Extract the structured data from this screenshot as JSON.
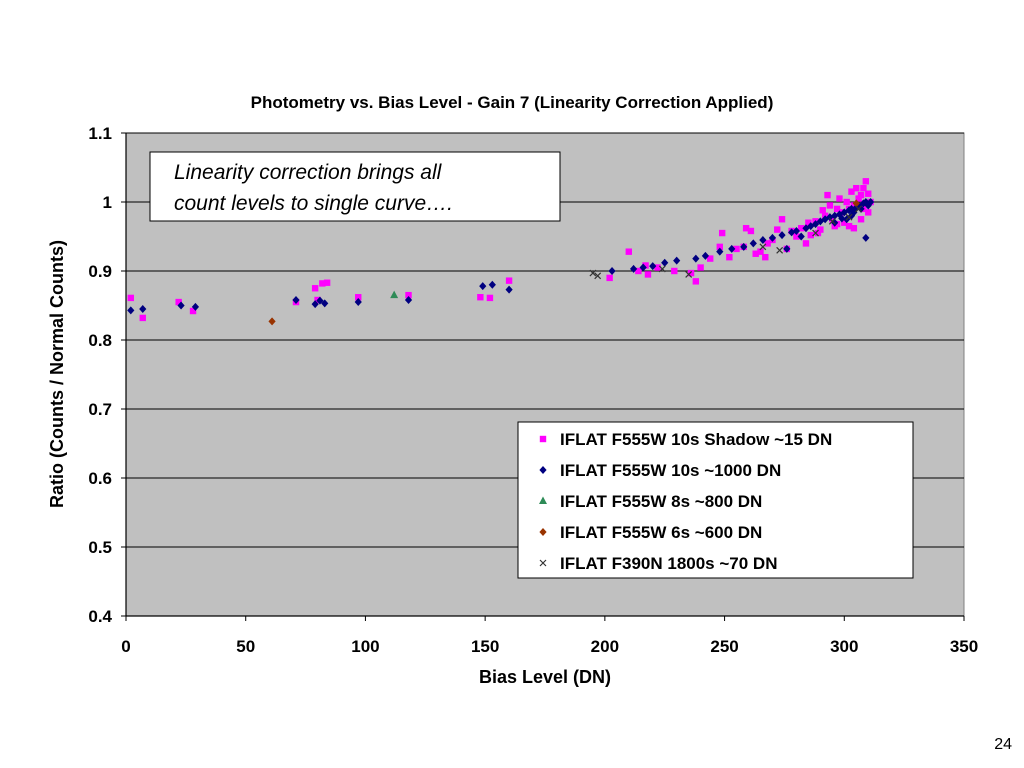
{
  "page_number": "24",
  "chart_data": {
    "type": "scatter",
    "title": "Photometry vs. Bias Level - Gain 7 (Linearity Correction Applied)",
    "xlabel": "Bias Level (DN)",
    "ylabel": "Ratio (Counts / Normal Counts)",
    "xlim": [
      0,
      350
    ],
    "ylim": [
      0.4,
      1.1
    ],
    "x_ticks": [
      "0",
      "50",
      "100",
      "150",
      "200",
      "250",
      "300",
      "350"
    ],
    "y_ticks": [
      "0.4",
      "0.5",
      "0.6",
      "0.7",
      "0.8",
      "0.9",
      "1",
      "1.1"
    ],
    "gridlines": "horizontal",
    "plot_background": "#c0c0c0",
    "annotation": [
      "Linearity correction brings all",
      "count levels to single curve…."
    ],
    "legend_position": "bottom-right",
    "series": [
      {
        "name": "IFLAT F555W 10s Shadow ~15 DN",
        "marker": "square",
        "color": "#ff00ff",
        "points": [
          [
            2,
            0.861
          ],
          [
            7,
            0.832
          ],
          [
            22,
            0.855
          ],
          [
            28,
            0.842
          ],
          [
            71,
            0.855
          ],
          [
            79,
            0.875
          ],
          [
            80,
            0.858
          ],
          [
            82,
            0.882
          ],
          [
            84,
            0.883
          ],
          [
            97,
            0.862
          ],
          [
            118,
            0.865
          ],
          [
            148,
            0.862
          ],
          [
            152,
            0.861
          ],
          [
            160,
            0.886
          ],
          [
            202,
            0.89
          ],
          [
            210,
            0.928
          ],
          [
            214,
            0.9
          ],
          [
            217,
            0.908
          ],
          [
            218,
            0.895
          ],
          [
            222,
            0.905
          ],
          [
            229,
            0.9
          ],
          [
            236,
            0.897
          ],
          [
            238,
            0.885
          ],
          [
            240,
            0.905
          ],
          [
            244,
            0.918
          ],
          [
            248,
            0.935
          ],
          [
            249,
            0.955
          ],
          [
            252,
            0.92
          ],
          [
            255,
            0.932
          ],
          [
            258,
            0.935
          ],
          [
            259,
            0.962
          ],
          [
            261,
            0.958
          ],
          [
            263,
            0.925
          ],
          [
            265,
            0.928
          ],
          [
            267,
            0.92
          ],
          [
            268,
            0.94
          ],
          [
            270,
            0.945
          ],
          [
            272,
            0.96
          ],
          [
            274,
            0.975
          ],
          [
            276,
            0.932
          ],
          [
            278,
            0.958
          ],
          [
            280,
            0.95
          ],
          [
            282,
            0.962
          ],
          [
            284,
            0.94
          ],
          [
            285,
            0.97
          ],
          [
            286,
            0.952
          ],
          [
            288,
            0.972
          ],
          [
            289,
            0.955
          ],
          [
            290,
            0.96
          ],
          [
            291,
            0.988
          ],
          [
            292,
            0.98
          ],
          [
            293,
            1.01
          ],
          [
            294,
            0.995
          ],
          [
            295,
            0.975
          ],
          [
            296,
            0.965
          ],
          [
            297,
            0.99
          ],
          [
            298,
            1.005
          ],
          [
            299,
            0.985
          ],
          [
            300,
            0.97
          ],
          [
            301,
            1.0
          ],
          [
            302,
            0.99
          ],
          [
            303,
            1.015
          ],
          [
            304,
            0.995
          ],
          [
            305,
            1.02
          ],
          [
            306,
            1.005
          ],
          [
            307,
            0.975
          ],
          [
            307,
            1.01
          ],
          [
            308,
            1.02
          ],
          [
            308,
            0.99
          ],
          [
            309,
            1.03
          ],
          [
            309,
            0.998
          ],
          [
            310,
            1.012
          ],
          [
            310,
            0.985
          ],
          [
            311,
            1.0
          ],
          [
            302,
            0.965
          ],
          [
            297,
            0.968
          ],
          [
            304,
            0.962
          ]
        ]
      },
      {
        "name": "IFLAT F555W 10s ~1000 DN",
        "marker": "diamond",
        "color": "#000080",
        "points": [
          [
            2,
            0.843
          ],
          [
            7,
            0.845
          ],
          [
            23,
            0.85
          ],
          [
            29,
            0.848
          ],
          [
            71,
            0.858
          ],
          [
            79,
            0.852
          ],
          [
            81,
            0.857
          ],
          [
            83,
            0.853
          ],
          [
            97,
            0.855
          ],
          [
            118,
            0.858
          ],
          [
            149,
            0.878
          ],
          [
            153,
            0.88
          ],
          [
            160,
            0.873
          ],
          [
            203,
            0.9
          ],
          [
            212,
            0.903
          ],
          [
            216,
            0.905
          ],
          [
            220,
            0.907
          ],
          [
            225,
            0.912
          ],
          [
            230,
            0.915
          ],
          [
            238,
            0.918
          ],
          [
            242,
            0.922
          ],
          [
            248,
            0.928
          ],
          [
            253,
            0.932
          ],
          [
            258,
            0.935
          ],
          [
            262,
            0.94
          ],
          [
            266,
            0.945
          ],
          [
            270,
            0.948
          ],
          [
            274,
            0.952
          ],
          [
            276,
            0.932
          ],
          [
            278,
            0.956
          ],
          [
            280,
            0.958
          ],
          [
            282,
            0.95
          ],
          [
            284,
            0.962
          ],
          [
            286,
            0.965
          ],
          [
            288,
            0.968
          ],
          [
            290,
            0.972
          ],
          [
            292,
            0.975
          ],
          [
            294,
            0.978
          ],
          [
            296,
            0.98
          ],
          [
            298,
            0.982
          ],
          [
            300,
            0.985
          ],
          [
            301,
            0.975
          ],
          [
            302,
            0.988
          ],
          [
            303,
            0.99
          ],
          [
            304,
            0.985
          ],
          [
            305,
            0.992
          ],
          [
            306,
            0.995
          ],
          [
            307,
            0.99
          ],
          [
            308,
            0.998
          ],
          [
            309,
            1.0
          ],
          [
            310,
            0.995
          ],
          [
            311,
            1.0
          ],
          [
            309,
            0.948
          ],
          [
            296,
            0.97
          ],
          [
            299,
            0.976
          ],
          [
            303,
            0.98
          ]
        ]
      },
      {
        "name": "IFLAT F555W 8s ~800 DN",
        "marker": "triangle",
        "color": "#2e8b57",
        "points": [
          [
            112,
            0.865
          ]
        ]
      },
      {
        "name": "IFLAT F555W 6s ~600 DN",
        "marker": "diamond",
        "color": "#993300",
        "points": [
          [
            61,
            0.827
          ],
          [
            305,
            0.998
          ]
        ]
      },
      {
        "name": "IFLAT F390N 1800s ~70 DN",
        "marker": "x",
        "color": "#333333",
        "points": [
          [
            195,
            0.897
          ],
          [
            197,
            0.893
          ],
          [
            224,
            0.903
          ],
          [
            235,
            0.895
          ],
          [
            266,
            0.935
          ],
          [
            273,
            0.93
          ],
          [
            288,
            0.955
          ],
          [
            295,
            0.972
          ],
          [
            302,
            0.978
          ],
          [
            306,
            0.99
          ]
        ]
      }
    ]
  }
}
